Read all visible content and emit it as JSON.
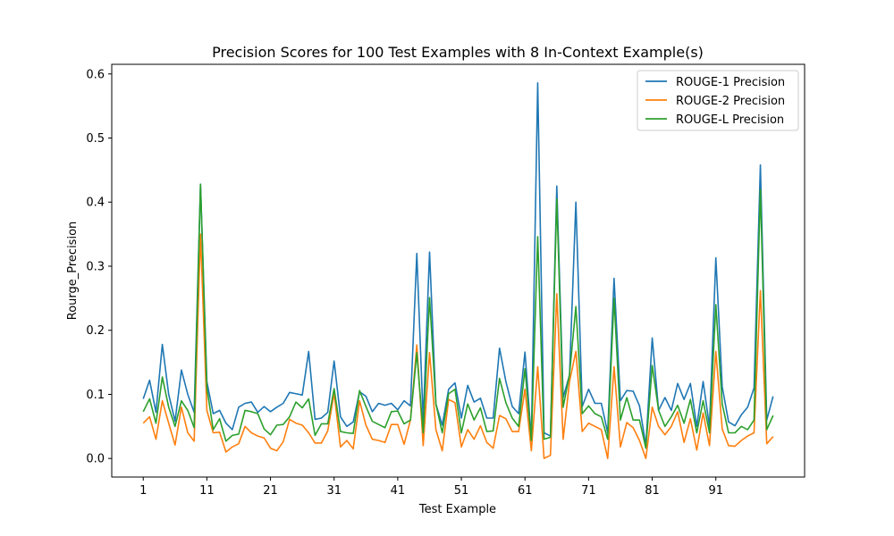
{
  "chart_data": {
    "type": "line",
    "title": "Precision Scores for 100 Test Examples with 8 In-Context Example(s)",
    "xlabel": "Test Example",
    "ylabel": "Rourge_Precision",
    "xlim": [
      -3.95,
      104.95
    ],
    "ylim": [
      -0.029,
      0.615
    ],
    "xticks": [
      1,
      11,
      21,
      31,
      41,
      51,
      61,
      71,
      81,
      91
    ],
    "yticks": [
      0.0,
      0.1,
      0.2,
      0.3,
      0.4,
      0.5,
      0.6
    ],
    "ytick_labels": [
      "0.0",
      "0.1",
      "0.2",
      "0.3",
      "0.4",
      "0.5",
      "0.6"
    ],
    "grid": false,
    "legend_position": "top-right",
    "series": [
      {
        "name": "ROUGE-1 Precision",
        "color": "#1f77b4",
        "values": [
          0.093,
          0.122,
          0.072,
          0.178,
          0.1,
          0.058,
          0.138,
          0.1,
          0.072,
          0.428,
          0.12,
          0.07,
          0.075,
          0.055,
          0.045,
          0.08,
          0.086,
          0.088,
          0.072,
          0.081,
          0.073,
          0.08,
          0.086,
          0.103,
          0.101,
          0.099,
          0.167,
          0.061,
          0.063,
          0.072,
          0.152,
          0.065,
          0.05,
          0.057,
          0.104,
          0.097,
          0.073,
          0.086,
          0.083,
          0.086,
          0.076,
          0.09,
          0.082,
          0.32,
          0.06,
          0.322,
          0.085,
          0.052,
          0.108,
          0.118,
          0.063,
          0.114,
          0.088,
          0.094,
          0.063,
          0.063,
          0.172,
          0.12,
          0.081,
          0.07,
          0.166,
          0.03,
          0.586,
          0.04,
          0.035,
          0.425,
          0.095,
          0.13,
          0.4,
          0.081,
          0.108,
          0.086,
          0.086,
          0.04,
          0.281,
          0.09,
          0.106,
          0.105,
          0.082,
          0.02,
          0.188,
          0.075,
          0.095,
          0.075,
          0.117,
          0.092,
          0.117,
          0.05,
          0.12,
          0.05,
          0.313,
          0.112,
          0.057,
          0.051,
          0.068,
          0.08,
          0.11,
          0.458,
          0.06,
          0.097
        ]
      },
      {
        "name": "ROUGE-2 Precision",
        "color": "#ff7f0e",
        "values": [
          0.055,
          0.065,
          0.03,
          0.09,
          0.055,
          0.021,
          0.08,
          0.04,
          0.027,
          0.35,
          0.075,
          0.04,
          0.041,
          0.01,
          0.018,
          0.023,
          0.05,
          0.04,
          0.035,
          0.032,
          0.016,
          0.012,
          0.026,
          0.061,
          0.055,
          0.052,
          0.04,
          0.024,
          0.024,
          0.043,
          0.102,
          0.018,
          0.028,
          0.015,
          0.09,
          0.052,
          0.03,
          0.028,
          0.025,
          0.053,
          0.053,
          0.022,
          0.06,
          0.177,
          0.02,
          0.165,
          0.045,
          0.012,
          0.092,
          0.087,
          0.018,
          0.045,
          0.03,
          0.051,
          0.025,
          0.016,
          0.067,
          0.062,
          0.042,
          0.042,
          0.108,
          0.012,
          0.143,
          0.0,
          0.005,
          0.257,
          0.03,
          0.12,
          0.167,
          0.042,
          0.055,
          0.05,
          0.045,
          0.0,
          0.143,
          0.018,
          0.056,
          0.048,
          0.028,
          0.0,
          0.08,
          0.05,
          0.037,
          0.05,
          0.073,
          0.025,
          0.062,
          0.013,
          0.071,
          0.02,
          0.167,
          0.046,
          0.02,
          0.019,
          0.028,
          0.035,
          0.04,
          0.262,
          0.023,
          0.034
        ]
      },
      {
        "name": "ROUGE-L Precision",
        "color": "#2ca02c",
        "values": [
          0.073,
          0.093,
          0.055,
          0.127,
          0.08,
          0.05,
          0.09,
          0.075,
          0.048,
          0.428,
          0.11,
          0.045,
          0.062,
          0.027,
          0.036,
          0.038,
          0.075,
          0.073,
          0.07,
          0.046,
          0.037,
          0.052,
          0.053,
          0.065,
          0.088,
          0.079,
          0.093,
          0.036,
          0.054,
          0.054,
          0.109,
          0.042,
          0.04,
          0.039,
          0.106,
          0.081,
          0.058,
          0.053,
          0.048,
          0.073,
          0.074,
          0.054,
          0.06,
          0.165,
          0.04,
          0.251,
          0.085,
          0.04,
          0.101,
          0.108,
          0.04,
          0.085,
          0.06,
          0.079,
          0.042,
          0.043,
          0.125,
          0.087,
          0.063,
          0.05,
          0.14,
          0.028,
          0.346,
          0.03,
          0.033,
          0.405,
          0.08,
          0.131,
          0.237,
          0.07,
          0.082,
          0.07,
          0.065,
          0.03,
          0.25,
          0.06,
          0.095,
          0.06,
          0.06,
          0.016,
          0.145,
          0.075,
          0.05,
          0.065,
          0.083,
          0.055,
          0.092,
          0.04,
          0.09,
          0.04,
          0.24,
          0.085,
          0.04,
          0.04,
          0.05,
          0.045,
          0.06,
          0.42,
          0.045,
          0.067
        ]
      }
    ]
  }
}
